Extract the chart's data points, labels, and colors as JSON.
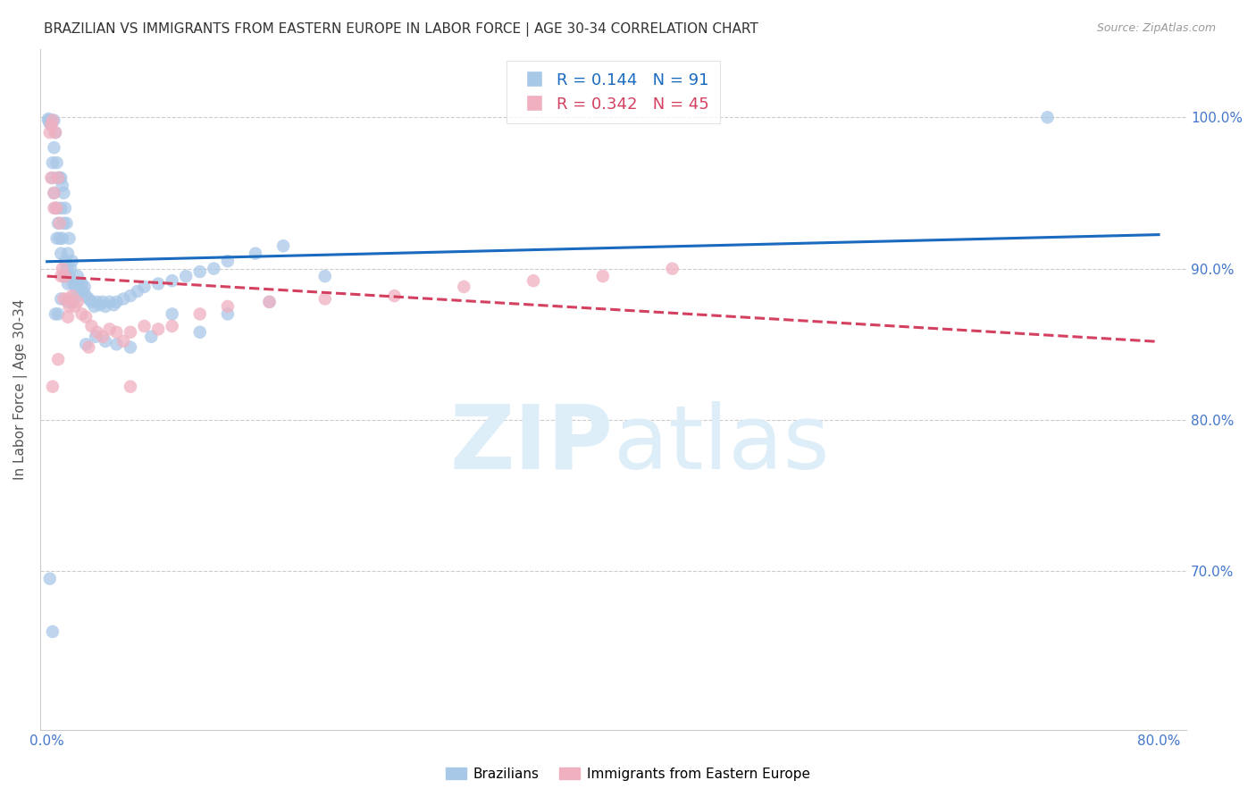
{
  "title": "BRAZILIAN VS IMMIGRANTS FROM EASTERN EUROPE IN LABOR FORCE | AGE 30-34 CORRELATION CHART",
  "source": "Source: ZipAtlas.com",
  "ylabel": "In Labor Force | Age 30-34",
  "xlim": [
    -0.005,
    0.82
  ],
  "ylim": [
    0.595,
    1.045
  ],
  "xticks": [
    0.0,
    0.1,
    0.2,
    0.3,
    0.4,
    0.5,
    0.6,
    0.7,
    0.8
  ],
  "xticklabels": [
    "0.0%",
    "",
    "",
    "",
    "",
    "",
    "",
    "",
    "80.0%"
  ],
  "yticks": [
    0.7,
    0.8,
    0.9,
    1.0
  ],
  "yticklabels": [
    "70.0%",
    "80.0%",
    "90.0%",
    "100.0%"
  ],
  "legend_blue_label": "R = 0.144   N = 91",
  "legend_pink_label": "R = 0.342   N = 45",
  "legend_blue_color": "#a8c8e8",
  "legend_pink_color": "#f0b0c0",
  "blue_line_color": "#1a6bbf",
  "pink_line_color": "#d44060",
  "watermark_color": "#ddeef8",
  "background_color": "#ffffff",
  "grid_color": "#cccccc",
  "title_color": "#333333",
  "tick_label_color": "#4477cc",
  "blue_scatter_x": [
    0.001,
    0.001,
    0.002,
    0.002,
    0.003,
    0.003,
    0.003,
    0.004,
    0.004,
    0.005,
    0.005,
    0.005,
    0.006,
    0.006,
    0.007,
    0.007,
    0.007,
    0.008,
    0.008,
    0.009,
    0.009,
    0.01,
    0.01,
    0.01,
    0.011,
    0.011,
    0.012,
    0.012,
    0.013,
    0.013,
    0.014,
    0.014,
    0.015,
    0.015,
    0.016,
    0.016,
    0.017,
    0.018,
    0.019,
    0.02,
    0.021,
    0.022,
    0.023,
    0.024,
    0.025,
    0.026,
    0.027,
    0.028,
    0.03,
    0.032,
    0.034,
    0.036,
    0.038,
    0.04,
    0.042,
    0.045,
    0.048,
    0.05,
    0.055,
    0.06,
    0.065,
    0.07,
    0.08,
    0.09,
    0.1,
    0.11,
    0.12,
    0.13,
    0.15,
    0.17,
    0.002,
    0.004,
    0.006,
    0.008,
    0.01,
    0.012,
    0.015,
    0.018,
    0.022,
    0.028,
    0.035,
    0.042,
    0.05,
    0.06,
    0.075,
    0.09,
    0.11,
    0.13,
    0.16,
    0.2,
    0.72
  ],
  "blue_scatter_y": [
    0.999,
    0.998,
    0.997,
    0.996,
    0.998,
    0.997,
    0.996,
    0.97,
    0.96,
    0.998,
    0.98,
    0.95,
    0.99,
    0.94,
    0.97,
    0.94,
    0.92,
    0.96,
    0.93,
    0.96,
    0.92,
    0.96,
    0.94,
    0.91,
    0.955,
    0.92,
    0.95,
    0.93,
    0.94,
    0.905,
    0.93,
    0.9,
    0.91,
    0.89,
    0.92,
    0.895,
    0.9,
    0.905,
    0.89,
    0.89,
    0.885,
    0.895,
    0.89,
    0.885,
    0.89,
    0.885,
    0.888,
    0.882,
    0.88,
    0.878,
    0.875,
    0.878,
    0.876,
    0.878,
    0.875,
    0.878,
    0.876,
    0.878,
    0.88,
    0.882,
    0.885,
    0.888,
    0.89,
    0.892,
    0.895,
    0.898,
    0.9,
    0.905,
    0.91,
    0.915,
    0.695,
    0.66,
    0.87,
    0.87,
    0.88,
    0.895,
    0.878,
    0.878,
    0.882,
    0.85,
    0.855,
    0.852,
    0.85,
    0.848,
    0.855,
    0.87,
    0.858,
    0.87,
    0.878,
    0.895,
    1.0
  ],
  "pink_scatter_x": [
    0.002,
    0.003,
    0.003,
    0.004,
    0.005,
    0.005,
    0.006,
    0.007,
    0.008,
    0.009,
    0.01,
    0.011,
    0.012,
    0.013,
    0.015,
    0.016,
    0.018,
    0.02,
    0.022,
    0.025,
    0.028,
    0.032,
    0.036,
    0.04,
    0.045,
    0.05,
    0.055,
    0.06,
    0.07,
    0.08,
    0.09,
    0.11,
    0.13,
    0.16,
    0.2,
    0.25,
    0.3,
    0.35,
    0.4,
    0.45,
    0.004,
    0.008,
    0.015,
    0.03,
    0.06
  ],
  "pink_scatter_y": [
    0.99,
    0.995,
    0.96,
    0.998,
    0.95,
    0.94,
    0.99,
    0.94,
    0.96,
    0.93,
    0.895,
    0.9,
    0.88,
    0.895,
    0.88,
    0.875,
    0.882,
    0.875,
    0.878,
    0.87,
    0.868,
    0.862,
    0.858,
    0.855,
    0.86,
    0.858,
    0.852,
    0.858,
    0.862,
    0.86,
    0.862,
    0.87,
    0.875,
    0.878,
    0.88,
    0.882,
    0.888,
    0.892,
    0.895,
    0.9,
    0.822,
    0.84,
    0.868,
    0.848,
    0.822
  ],
  "title_fontsize": 11,
  "source_fontsize": 9
}
